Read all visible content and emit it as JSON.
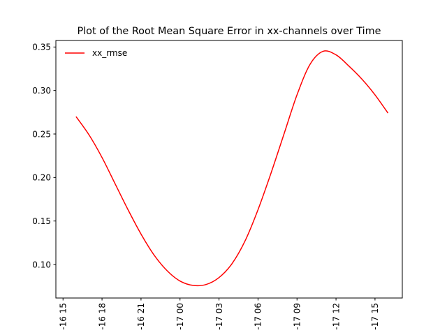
{
  "chart_data": {
    "type": "line",
    "title": "Plot of the Root Mean Square Error in xx-channels over Time",
    "xlabel": "",
    "ylabel": "",
    "x_ticks": [
      "-16 15",
      "-16 18",
      "-16 21",
      "-17 00",
      "-17 03",
      "-17 06",
      "-17 09",
      "-17 12",
      "-17 15"
    ],
    "y_ticks": [
      "0.10",
      "0.15",
      "0.20",
      "0.25",
      "0.30",
      "0.35"
    ],
    "y_tick_values": [
      0.1,
      0.15,
      0.2,
      0.25,
      0.3,
      0.35
    ],
    "ylim": [
      0.0615,
      0.3575
    ],
    "xlim": [
      "-16 14:27",
      "-17 17:06"
    ],
    "grid": false,
    "legend_position": "upper-left",
    "series": [
      {
        "name": "xx_rmse",
        "color": "#ff0000",
        "x": [
          "-16 16:00",
          "-16 17:00",
          "-16 18:00",
          "-16 19:00",
          "-16 20:00",
          "-16 21:00",
          "-16 22:00",
          "-16 23:00",
          "-17 00:00",
          "-17 01:00",
          "-17 02:00",
          "-17 03:00",
          "-17 04:00",
          "-17 05:00",
          "-17 06:00",
          "-17 07:00",
          "-17 08:00",
          "-17 09:00",
          "-17 10:00",
          "-17 11:00",
          "-17 12:00",
          "-17 13:00",
          "-17 14:00",
          "-17 15:00",
          "-17 16:00"
        ],
        "values": [
          0.27,
          0.249,
          0.223,
          0.193,
          0.163,
          0.135,
          0.111,
          0.093,
          0.081,
          0.076,
          0.077,
          0.085,
          0.101,
          0.127,
          0.163,
          0.205,
          0.25,
          0.295,
          0.33,
          0.345,
          0.341,
          0.328,
          0.313,
          0.295,
          0.274
        ]
      }
    ]
  }
}
